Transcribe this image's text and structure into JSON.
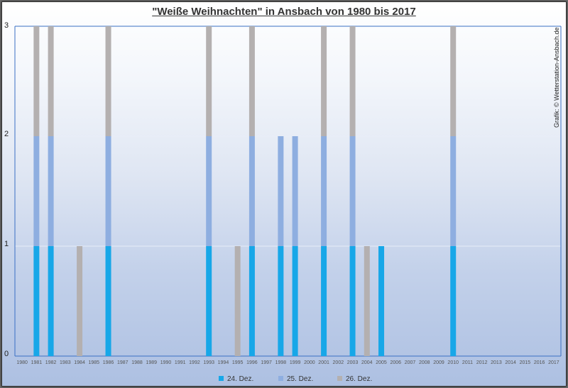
{
  "chart_data": {
    "type": "bar",
    "stacked": true,
    "title": "\"Weiße Weihnachten\" in Ansbach von 1980 bis 2017",
    "credit": "Grafik: © Wetterstation-Ansbach.de",
    "categories": [
      "1980",
      "1981",
      "1982",
      "1983",
      "1984",
      "1985",
      "1986",
      "1987",
      "1988",
      "1989",
      "1990",
      "1991",
      "1992",
      "1993",
      "1994",
      "1995",
      "1996",
      "1997",
      "1998",
      "1999",
      "2000",
      "2001",
      "2002",
      "2003",
      "2004",
      "2005",
      "2006",
      "2007",
      "2008",
      "2009",
      "2010",
      "2011",
      "2012",
      "2013",
      "2014",
      "2015",
      "2016",
      "2017"
    ],
    "series": [
      {
        "name": "24. Dez.",
        "color": "#17a7e8",
        "values": [
          0,
          1,
          1,
          0,
          0,
          0,
          1,
          0,
          0,
          0,
          0,
          0,
          0,
          1,
          0,
          0,
          1,
          0,
          1,
          1,
          0,
          1,
          0,
          1,
          0,
          1,
          0,
          0,
          0,
          0,
          1,
          0,
          0,
          0,
          0,
          0,
          0,
          0
        ]
      },
      {
        "name": "25. Dez.",
        "color": "#8eaee0",
        "values": [
          0,
          1,
          1,
          0,
          0,
          0,
          1,
          0,
          0,
          0,
          0,
          0,
          0,
          1,
          0,
          0,
          1,
          0,
          1,
          1,
          0,
          1,
          0,
          1,
          0,
          0,
          0,
          0,
          0,
          0,
          1,
          0,
          0,
          0,
          0,
          0,
          0,
          0
        ]
      },
      {
        "name": "26. Dez.",
        "color": "#b4b0b0",
        "values": [
          0,
          1,
          1,
          0,
          1,
          0,
          1,
          0,
          0,
          0,
          0,
          0,
          0,
          1,
          0,
          1,
          1,
          0,
          0,
          0,
          0,
          1,
          0,
          1,
          1,
          0,
          0,
          0,
          0,
          0,
          1,
          0,
          0,
          0,
          0,
          0,
          0,
          0
        ]
      }
    ],
    "ylim": [
      0,
      3
    ],
    "yticks": [
      "0",
      "1",
      "2",
      "3"
    ],
    "grid": true,
    "legend_position": "bottom"
  }
}
